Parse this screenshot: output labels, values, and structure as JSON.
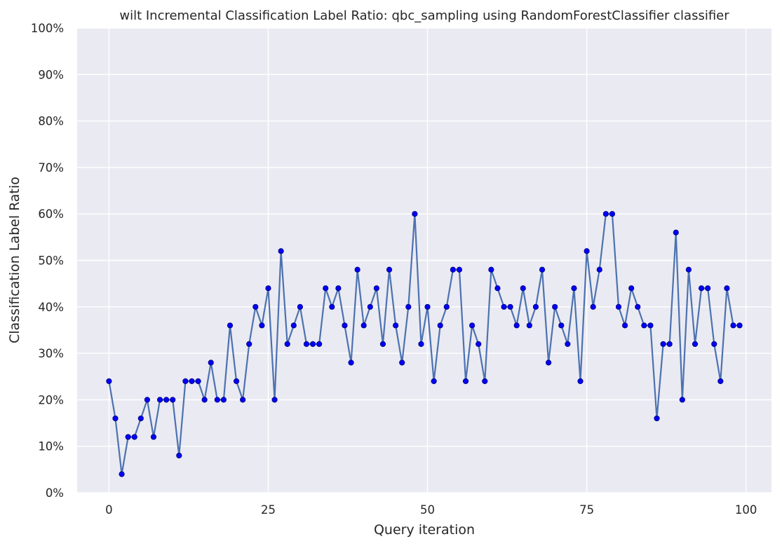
{
  "chart_data": {
    "type": "line",
    "title": "wilt Incremental Classification Label Ratio: qbc_sampling using RandomForestClassifier classifier",
    "xlabel": "Query iteration",
    "ylabel": "Classification Label Ratio",
    "xlim": [
      -5,
      104
    ],
    "ylim": [
      0,
      100
    ],
    "x_ticks": [
      0,
      25,
      50,
      75,
      100
    ],
    "x_tick_labels": [
      "0",
      "25",
      "50",
      "75",
      "100"
    ],
    "y_ticks": [
      0,
      10,
      20,
      30,
      40,
      50,
      60,
      70,
      80,
      90,
      100
    ],
    "y_tick_labels": [
      "0%",
      "10%",
      "20%",
      "30%",
      "40%",
      "50%",
      "60%",
      "70%",
      "80%",
      "90%",
      "100%"
    ],
    "grid": true,
    "colors": {
      "background": "#eaeaf2",
      "grid": "#ffffff",
      "line": "#4c72b0",
      "marker": "#0000ff",
      "marker_edge": "#00008b"
    },
    "series": [
      {
        "x": [
          0,
          1,
          2,
          3,
          4,
          5,
          6,
          7,
          8,
          9,
          10,
          11,
          12,
          13,
          14,
          15,
          16,
          17,
          18,
          19,
          20,
          21,
          22,
          23,
          24,
          25,
          26,
          27,
          28,
          29,
          30,
          31,
          32,
          33,
          34,
          35,
          36,
          37,
          38,
          39,
          40,
          41,
          42,
          43,
          44,
          45,
          46,
          47,
          48,
          49,
          50,
          51,
          52,
          53,
          54,
          55,
          56,
          57,
          58,
          59,
          60,
          61,
          62,
          63,
          64,
          65,
          66,
          67,
          68,
          69,
          70,
          71,
          72,
          73,
          74,
          75,
          76,
          77,
          78,
          79,
          80,
          81,
          82,
          83,
          84,
          85,
          86,
          87,
          88,
          89,
          90,
          91,
          92,
          93,
          94,
          95,
          96,
          97,
          98,
          99
        ],
        "values": [
          24,
          16,
          4,
          12,
          12,
          16,
          20,
          12,
          20,
          20,
          20,
          8,
          24,
          24,
          24,
          20,
          28,
          20,
          20,
          36,
          24,
          20,
          32,
          40,
          36,
          44,
          20,
          52,
          32,
          36,
          40,
          32,
          32,
          32,
          44,
          40,
          44,
          36,
          28,
          48,
          36,
          40,
          44,
          32,
          48,
          36,
          28,
          40,
          60,
          32,
          40,
          24,
          36,
          40,
          48,
          48,
          24,
          36,
          32,
          24,
          48,
          44,
          40,
          40,
          36,
          44,
          36,
          40,
          48,
          28,
          40,
          36,
          32,
          44,
          24,
          52,
          40,
          48,
          60,
          60,
          40,
          36,
          44,
          40,
          36,
          36,
          16,
          32,
          32,
          56,
          20,
          48,
          32,
          44,
          44,
          32,
          24,
          44,
          36,
          36
        ]
      }
    ]
  }
}
